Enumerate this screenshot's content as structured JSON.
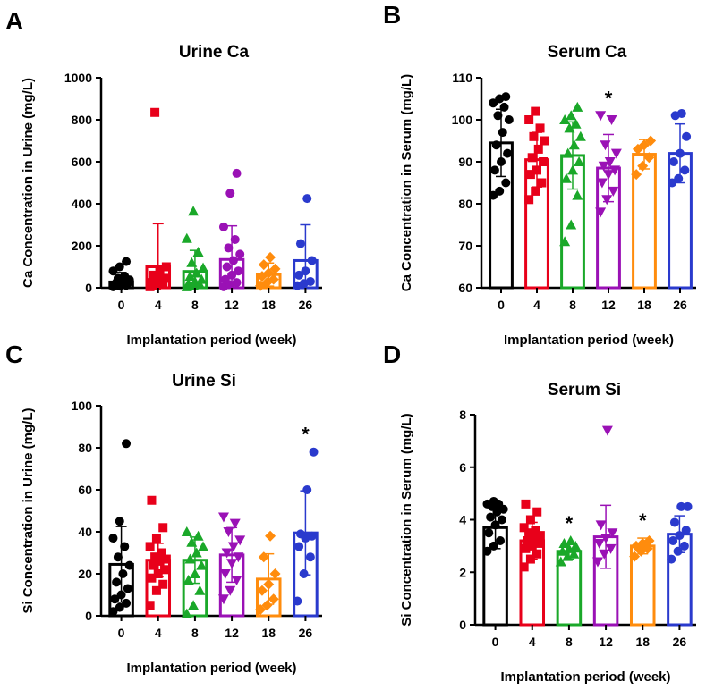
{
  "chart_data": [
    {
      "panel": "A",
      "type": "bar",
      "title": "Urine Ca",
      "xlabel": "Implantation period (week)",
      "ylabel": "Ca Concentration in Urine (mg/L)",
      "ylim": [
        0,
        1000
      ],
      "yticks": [
        0,
        200,
        400,
        600,
        800,
        1000
      ],
      "categories": [
        "0",
        "4",
        "8",
        "12",
        "18",
        "26"
      ],
      "marker_shapes": [
        "circle",
        "square",
        "triangle",
        "circle",
        "diamond",
        "circle"
      ],
      "means": [
        28,
        100,
        78,
        135,
        63,
        130
      ],
      "sd": [
        45,
        205,
        100,
        160,
        55,
        170
      ],
      "points": [
        [
          5,
          8,
          12,
          15,
          18,
          22,
          25,
          30,
          38,
          45,
          55,
          80,
          100,
          125
        ],
        [
          5,
          10,
          18,
          25,
          35,
          45,
          60,
          75,
          100,
          835
        ],
        [
          5,
          10,
          15,
          20,
          30,
          40,
          55,
          70,
          95,
          120,
          170,
          235,
          365
        ],
        [
          5,
          15,
          25,
          40,
          60,
          80,
          100,
          130,
          160,
          190,
          230,
          290,
          450,
          545
        ],
        [
          10,
          25,
          40,
          55,
          70,
          90,
          110,
          145
        ],
        [
          10,
          20,
          30,
          60,
          80,
          130,
          210,
          425
        ]
      ],
      "significant": [
        false,
        false,
        false,
        false,
        false,
        false
      ]
    },
    {
      "panel": "B",
      "type": "bar",
      "title": "Serum Ca",
      "xlabel": "Implantation period (week)",
      "ylabel": "Ca Concentration in Serum (mg/L)",
      "ylim": [
        60,
        110
      ],
      "yticks": [
        60,
        70,
        80,
        90,
        100,
        110
      ],
      "categories": [
        "0",
        "4",
        "8",
        "12",
        "18",
        "26"
      ],
      "marker_shapes": [
        "circle",
        "square",
        "triangle",
        "invtriangle",
        "diamond",
        "circle"
      ],
      "means": [
        94.5,
        90.5,
        91.5,
        88.5,
        91.8,
        92
      ],
      "sd": [
        8,
        6.5,
        8,
        8,
        3.5,
        7
      ],
      "points": [
        [
          82,
          83,
          85,
          88,
          90,
          92,
          94,
          97,
          100,
          101,
          103,
          104,
          105,
          105.5
        ],
        [
          81,
          83,
          85,
          87,
          88,
          90,
          91,
          93,
          95,
          96,
          98,
          100,
          102
        ],
        [
          71,
          75,
          82,
          86,
          88,
          90,
          92,
          94,
          96,
          98,
          99,
          100,
          101,
          103
        ],
        [
          78,
          81,
          83,
          85,
          87,
          88,
          89,
          90,
          92,
          94,
          100,
          101
        ],
        [
          87,
          89,
          91,
          93,
          94,
          95
        ],
        [
          85,
          86,
          88,
          90,
          92,
          96,
          101,
          101.5
        ]
      ],
      "significant": [
        false,
        false,
        false,
        true,
        false,
        false
      ]
    },
    {
      "panel": "C",
      "type": "bar",
      "title": "Urine Si",
      "xlabel": "Implantation period (week)",
      "ylabel": "Si Concentration in Urine (mg/L)",
      "ylim": [
        0,
        100
      ],
      "yticks": [
        0,
        20,
        40,
        60,
        80,
        100
      ],
      "categories": [
        "0",
        "4",
        "8",
        "12",
        "18",
        "26"
      ],
      "marker_shapes": [
        "circle",
        "square",
        "triangle",
        "invtriangle",
        "diamond",
        "circle"
      ],
      "means": [
        24.5,
        26.5,
        26.5,
        29,
        17.5,
        39.5
      ],
      "sd": [
        18,
        8,
        11,
        13,
        12,
        20
      ],
      "points": [
        [
          2,
          4,
          6,
          8,
          10,
          13,
          16,
          20,
          24,
          28,
          33,
          37,
          45,
          82
        ],
        [
          5,
          12,
          15,
          18,
          20,
          22,
          24,
          26,
          27,
          28,
          30,
          33,
          37,
          42,
          55
        ],
        [
          1,
          5,
          12,
          17,
          20,
          24,
          27,
          30,
          33,
          35,
          38,
          40
        ],
        [
          8,
          12,
          17,
          20,
          25,
          28,
          30,
          33,
          36,
          40,
          44,
          47
        ],
        [
          3,
          5,
          8,
          12,
          15,
          20,
          28,
          38
        ],
        [
          7,
          20,
          28,
          33,
          37,
          38,
          39,
          60,
          78
        ]
      ],
      "significant": [
        false,
        false,
        false,
        false,
        false,
        true
      ]
    },
    {
      "panel": "D",
      "type": "bar",
      "title": "Serum Si",
      "xlabel": "Implantation period (week)",
      "ylabel": "Si Concentration in Serum (mg/L)",
      "ylim": [
        0,
        8
      ],
      "yticks": [
        0,
        2,
        4,
        6,
        8
      ],
      "categories": [
        "0",
        "4",
        "8",
        "12",
        "18",
        "26"
      ],
      "marker_shapes": [
        "circle",
        "square",
        "triangle",
        "invtriangle",
        "diamond",
        "circle"
      ],
      "means": [
        3.7,
        3.2,
        2.8,
        3.35,
        3.0,
        3.45
      ],
      "sd": [
        0.8,
        0.7,
        0.3,
        1.2,
        0.3,
        0.7
      ],
      "points": [
        [
          2.8,
          3.0,
          3.2,
          3.5,
          3.8,
          4.0,
          4.1,
          4.3,
          4.4,
          4.5,
          4.6,
          4.6,
          4.7
        ],
        [
          2.2,
          2.5,
          2.7,
          2.9,
          3.0,
          3.1,
          3.2,
          3.3,
          3.4,
          3.5,
          3.6,
          3.7,
          4.0,
          4.3,
          4.6
        ],
        [
          2.4,
          2.6,
          2.7,
          2.8,
          2.9,
          3.0,
          3.1,
          3.2
        ],
        [
          2.4,
          2.7,
          2.9,
          3.1,
          3.3,
          3.5,
          3.8,
          7.4
        ],
        [
          2.6,
          2.8,
          2.9,
          3.0,
          3.1,
          3.2
        ],
        [
          2.5,
          2.8,
          3.0,
          3.2,
          3.4,
          3.6,
          3.9,
          4.5,
          4.5
        ]
      ],
      "significant": [
        false,
        false,
        true,
        false,
        true,
        false
      ]
    }
  ],
  "colors": [
    "#000000",
    "#e8001a",
    "#1aa829",
    "#9a11b5",
    "#ff8c0d",
    "#2a3acd"
  ],
  "significance_marker": "*"
}
